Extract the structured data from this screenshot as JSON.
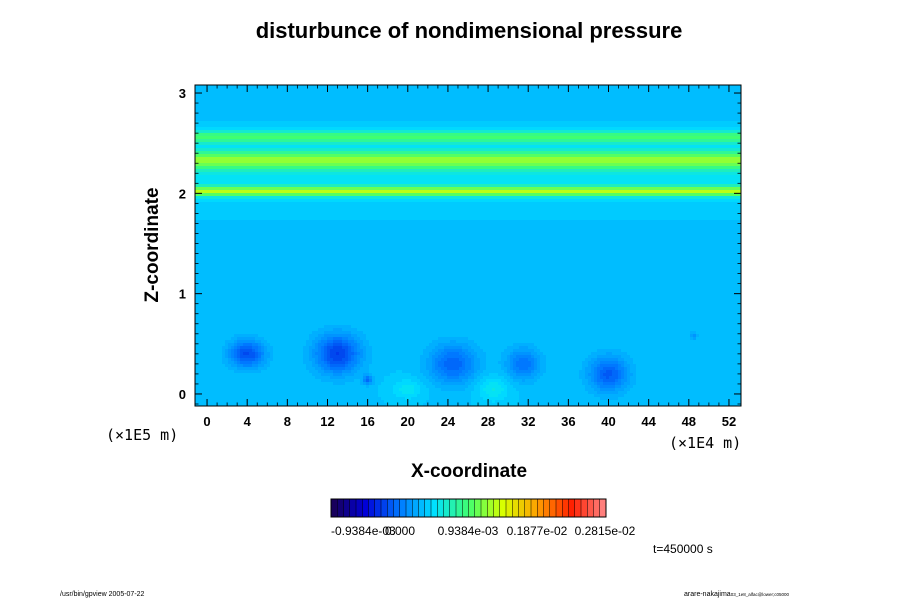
{
  "chart_data": {
    "type": "heatmap",
    "title": "disturbunce of nondimensional pressure",
    "xlabel": "X-coordinate",
    "ylabel": "Z-coordinate",
    "x_scale_label": "(×1E4 m)",
    "y_scale_label": "(×1E5 m)",
    "x_ticks": [
      "0",
      "4",
      "8",
      "12",
      "16",
      "20",
      "24",
      "28",
      "32",
      "36",
      "40",
      "44",
      "48",
      "52"
    ],
    "x_tick_values": [
      0,
      4,
      8,
      12,
      16,
      20,
      24,
      28,
      32,
      36,
      40,
      44,
      48,
      52
    ],
    "y_ticks": [
      "0",
      "1",
      "2",
      "3"
    ],
    "y_tick_values": [
      0,
      1,
      2,
      3
    ],
    "xlim": [
      -1.2,
      53.2
    ],
    "ylim": [
      -0.12,
      3.08
    ],
    "background_level": 0.13,
    "horizontal_bands": [
      {
        "z": 2.02,
        "width": 0.05,
        "level": 0.32
      },
      {
        "z": 2.33,
        "width": 0.09,
        "level": 0.27
      },
      {
        "z": 2.56,
        "width": 0.06,
        "level": 0.21
      },
      {
        "z": 2.22,
        "width": 0.25,
        "level": 0.05
      }
    ],
    "cells": [
      {
        "x": 4,
        "z": 0.4,
        "rx": 1.8,
        "rz": 0.14,
        "level": -0.18
      },
      {
        "x": 13,
        "z": 0.4,
        "rx": 2.3,
        "rz": 0.2,
        "level": -0.2
      },
      {
        "x": 16,
        "z": 0.14,
        "rx": 0.5,
        "rz": 0.05,
        "level": -0.13
      },
      {
        "x": 24.5,
        "z": 0.3,
        "rx": 2.4,
        "rz": 0.2,
        "level": -0.15
      },
      {
        "x": 31.5,
        "z": 0.3,
        "rx": 1.7,
        "rz": 0.16,
        "level": -0.13
      },
      {
        "x": 40,
        "z": 0.2,
        "rx": 2.0,
        "rz": 0.18,
        "level": -0.16
      },
      {
        "x": 20,
        "z": 0.05,
        "rx": 1.5,
        "rz": 0.1,
        "level": 0.06
      },
      {
        "x": 28.5,
        "z": 0.05,
        "rx": 1.6,
        "rz": 0.12,
        "level": 0.07
      },
      {
        "x": 48.5,
        "z": 0.58,
        "rx": 0.4,
        "rz": 0.04,
        "level": -0.07
      }
    ],
    "colorbar": {
      "tick_labels": [
        "-0.9384e-03",
        "0.000",
        "0.9384e-03",
        "0.1877e-02",
        "0.2815e-02"
      ],
      "stops": [
        "#1a0050",
        "#0000d8",
        "#0078ff",
        "#00e0ff",
        "#40ff70",
        "#d8ff00",
        "#ffa000",
        "#ff2000",
        "#ff8888"
      ],
      "segments": 44
    },
    "time_label": "t=450000 s",
    "footer_left": "/usr/bin/gpview 2005-07-22",
    "footer_right": "arare-nakajima",
    "footer_right_small": "03_1e8_alfac@lower;c05000"
  }
}
